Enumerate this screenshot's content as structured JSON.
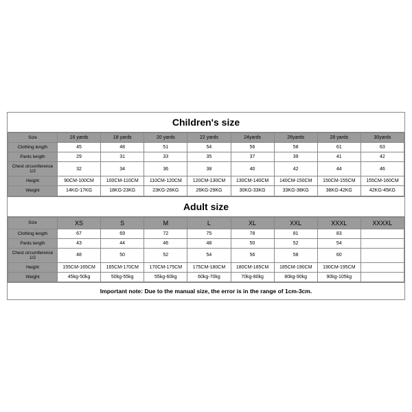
{
  "children": {
    "title": "Children's size",
    "row_labels": [
      "Size",
      "Clothing length",
      "Pants length",
      "Chest circumference 1/2",
      "Height",
      "Weight"
    ],
    "columns": [
      "16 yards",
      "18 yards",
      "20 yards",
      "22 yards",
      "24yards",
      "26yards",
      "28 yards",
      "30yards"
    ],
    "rows": [
      [
        "45",
        "48",
        "51",
        "54",
        "56",
        "58",
        "61",
        "63"
      ],
      [
        "29",
        "31",
        "33",
        "35",
        "37",
        "39",
        "41",
        "42"
      ],
      [
        "32",
        "34",
        "36",
        "38",
        "40",
        "42",
        "44",
        "46"
      ],
      [
        "90CM-100CM",
        "100CM-110CM",
        "110CM-120CM",
        "120CM-130CM",
        "130CM-140CM",
        "140CM-150CM",
        "150CM-155CM",
        "155CM-160CM"
      ],
      [
        "14KG-17KG",
        "18KG-23KG",
        "23KG-26KG",
        "26KG-29KG",
        "30KG-33KG",
        "33KG-38KG",
        "38KG-42KG",
        "42KG-45KG"
      ]
    ]
  },
  "adult": {
    "title": "Adult size",
    "row_labels": [
      "Size",
      "Clothing length",
      "Pants length",
      "Chest circumference 1/2",
      "Height",
      "Weight"
    ],
    "columns": [
      "XS",
      "S",
      "M",
      "L",
      "XL",
      "XXL",
      "XXXL",
      "XXXXL"
    ],
    "rows": [
      [
        "67",
        "69",
        "72",
        "75",
        "78",
        "81",
        "83",
        ""
      ],
      [
        "43",
        "44",
        "46",
        "48",
        "50",
        "52",
        "54",
        ""
      ],
      [
        "48",
        "50",
        "52",
        "54",
        "56",
        "58",
        "60",
        ""
      ],
      [
        "155CM-165CM",
        "165CM-170CM",
        "170CM-175CM",
        "175CM-180CM",
        "180CM-185CM",
        "185CM-190CM",
        "190CM-195CM",
        ""
      ],
      [
        "45kg-50kg",
        "50kg-55kg",
        "55kg-60kg",
        "60kg-70kg",
        "70kg-80kg",
        "80kg-90kg",
        "90kg-105kg",
        ""
      ]
    ]
  },
  "note": "Important note: Due to the manual size, the error is in the range of 1cm-3cm.",
  "colors": {
    "header_bg": "#9b9b9b",
    "border": "#888888",
    "background": "#ffffff"
  }
}
